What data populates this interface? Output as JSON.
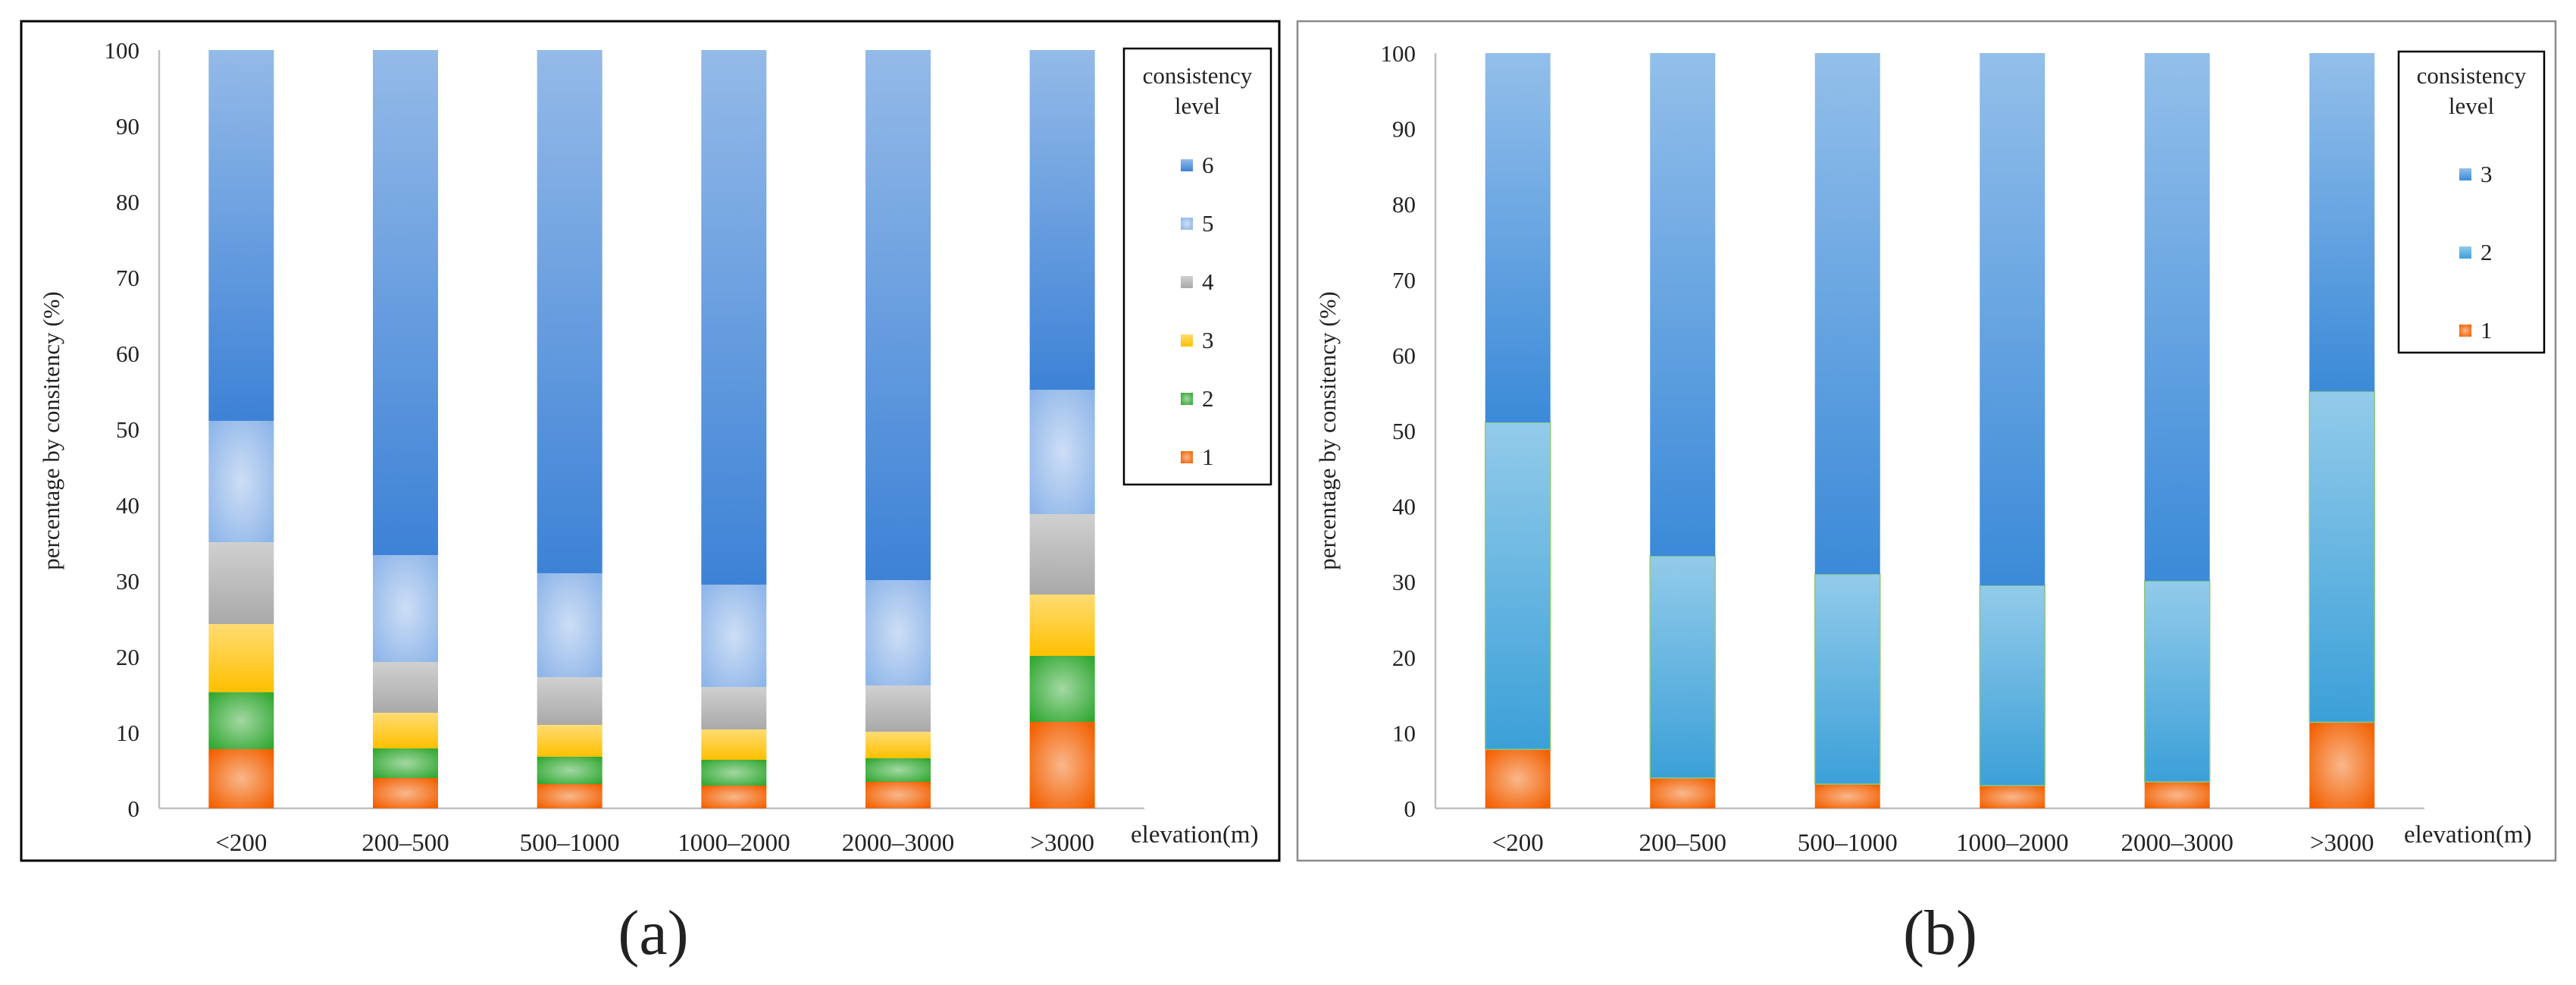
{
  "figure": {
    "label_a": "(a)",
    "label_b": "(b)"
  },
  "colors": {
    "level_6": "#3d82d6",
    "level_5": "#8fb6e9",
    "level_4": "#a9a9a9",
    "level_3": "#ffc000",
    "level_2": "#32a832",
    "level_1": "#f26000",
    "b_level_3": "#3b8ad8",
    "b_level_2": "#3ba0d8",
    "b_level_1": "#f26000",
    "axis": "#bfbfbf",
    "frame": "#000000",
    "text": "#222222"
  },
  "chart_data": [
    {
      "type": "bar",
      "stacked": true,
      "title": "(a)",
      "xlabel": "elevation(m)",
      "ylabel": "percentage by consitency (%)",
      "ylim": [
        0,
        100
      ],
      "yticks": [
        0,
        10,
        20,
        30,
        40,
        50,
        60,
        70,
        80,
        90,
        100
      ],
      "categories": [
        "<200",
        "200–500",
        "500–1000",
        "1000–2000",
        "2000–3000",
        ">3000"
      ],
      "legend_title": "consistency level",
      "legend_position": "top-right",
      "series": [
        {
          "name": "1",
          "values": [
            7.8,
            4.0,
            3.2,
            3.0,
            3.5,
            11.4
          ]
        },
        {
          "name": "2",
          "values": [
            7.5,
            3.9,
            3.6,
            3.4,
            3.1,
            8.7
          ]
        },
        {
          "name": "3",
          "values": [
            9.0,
            4.7,
            4.2,
            4.0,
            3.5,
            8.1
          ]
        },
        {
          "name": "4",
          "values": [
            10.8,
            6.7,
            6.3,
            5.6,
            6.1,
            10.6
          ]
        },
        {
          "name": "5",
          "values": [
            16.0,
            14.1,
            13.7,
            13.5,
            13.9,
            16.4
          ]
        },
        {
          "name": "6",
          "values": [
            48.9,
            66.6,
            69.0,
            70.5,
            69.9,
            44.8
          ]
        }
      ]
    },
    {
      "type": "bar",
      "stacked": true,
      "title": "(b)",
      "xlabel": "elevation(m)",
      "ylabel": "percentage by consitency (%)",
      "ylim": [
        0,
        100
      ],
      "yticks": [
        0,
        10,
        20,
        30,
        40,
        50,
        60,
        70,
        80,
        90,
        100
      ],
      "categories": [
        "<200",
        "200–500",
        "500–1000",
        "1000–2000",
        "2000–3000",
        ">3000"
      ],
      "legend_title": "consistency level",
      "legend_position": "top-right",
      "series": [
        {
          "name": "1",
          "values": [
            7.8,
            4.0,
            3.2,
            3.0,
            3.5,
            11.4
          ]
        },
        {
          "name": "2",
          "values": [
            43.3,
            29.4,
            27.8,
            26.5,
            26.6,
            43.8
          ]
        },
        {
          "name": "3",
          "values": [
            48.9,
            66.6,
            69.0,
            70.5,
            69.9,
            44.8
          ]
        }
      ]
    }
  ]
}
